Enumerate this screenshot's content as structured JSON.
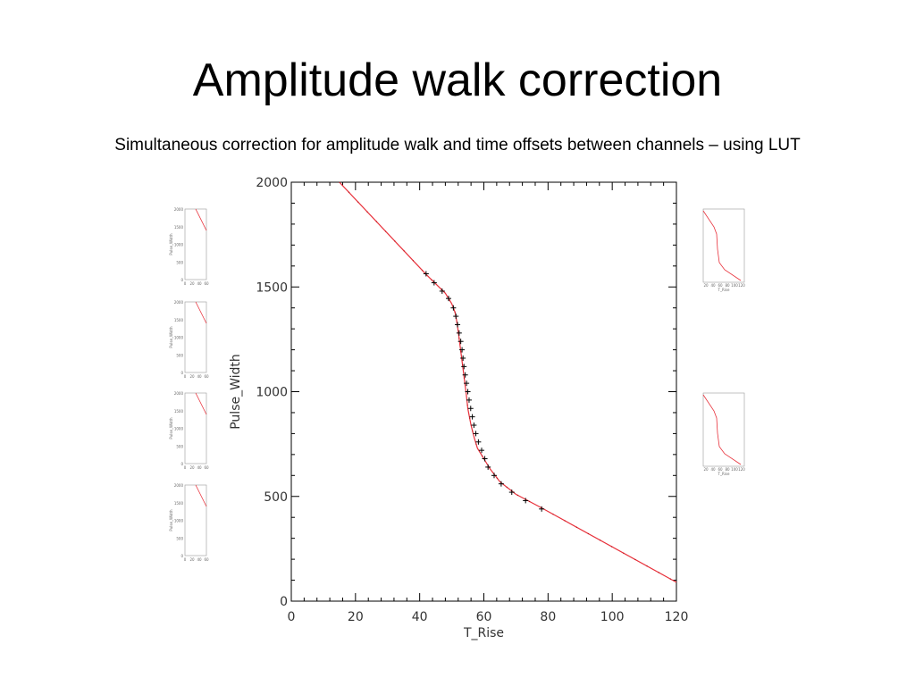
{
  "slide": {
    "title": "Amplitude walk correction",
    "subtitle": "Simultaneous correction for amplitude walk and time offsets between channels – using LUT"
  },
  "colors": {
    "line": "#e8303a",
    "marker": "#000000",
    "axis": "#000000",
    "text": "#333333"
  },
  "chart_data": [
    {
      "type": "line",
      "title": "",
      "xlabel": "T_Rise",
      "ylabel": "Pulse_Width",
      "xlim": [
        0,
        120
      ],
      "ylim": [
        0,
        2000
      ],
      "xticks": [
        0,
        20,
        40,
        60,
        80,
        100,
        120
      ],
      "yticks": [
        0,
        500,
        1000,
        1500,
        2000
      ],
      "grid": false,
      "series": [
        {
          "style": "line",
          "x": [
            15,
            42,
            48,
            50,
            51,
            51.5,
            52,
            52.5,
            53,
            53.5,
            54,
            54.5,
            55,
            56,
            57,
            58,
            60,
            62,
            65,
            70,
            78,
            120
          ],
          "y": [
            2000,
            1560,
            1470,
            1420,
            1380,
            1340,
            1290,
            1230,
            1170,
            1110,
            1050,
            990,
            920,
            840,
            780,
            730,
            680,
            630,
            570,
            510,
            445,
            90
          ]
        },
        {
          "style": "marker",
          "marker": "+",
          "x": [
            42,
            44.5,
            47,
            49,
            50.5,
            51.3,
            51.8,
            52.3,
            52.8,
            53.2,
            53.5,
            53.8,
            54.2,
            54.6,
            55,
            55.4,
            55.9,
            56.4,
            56.9,
            57.5,
            58.3,
            59.3,
            60.3,
            61.3,
            63.2,
            65.4,
            68.7,
            73,
            78
          ],
          "y": [
            1563,
            1520,
            1480,
            1445,
            1400,
            1360,
            1320,
            1280,
            1240,
            1200,
            1160,
            1120,
            1080,
            1040,
            1000,
            960,
            920,
            880,
            840,
            800,
            760,
            720,
            680,
            640,
            600,
            560,
            520,
            480,
            440
          ]
        }
      ]
    }
  ],
  "thumbnails": {
    "left": [
      {
        "ylabel": "Pulse_Width",
        "yticks": [
          "2000",
          "1500",
          "1000",
          "500",
          "0"
        ],
        "xticks": [
          "0",
          "20",
          "40",
          "60"
        ]
      },
      {
        "ylabel": "Pulse_Width",
        "yticks": [
          "2000",
          "1500",
          "1000",
          "500",
          "0"
        ],
        "xticks": [
          "0",
          "20",
          "40",
          "60"
        ]
      },
      {
        "ylabel": "Pulse_Width",
        "yticks": [
          "2000",
          "1500",
          "1000",
          "500",
          "0"
        ],
        "xticks": [
          "0",
          "20",
          "40",
          "60"
        ]
      },
      {
        "ylabel": "Pulse_Width",
        "yticks": [
          "2000",
          "1500",
          "1000",
          "500",
          "0"
        ],
        "xticks": [
          "0",
          "20",
          "40",
          "60"
        ]
      }
    ],
    "right": [
      {
        "xlabel": "T_Rise",
        "xticks": [
          "20",
          "40",
          "60",
          "80",
          "100",
          "120"
        ]
      },
      {
        "xlabel": "T_Rise",
        "xticks": [
          "20",
          "40",
          "60",
          "80",
          "100",
          "120"
        ]
      }
    ]
  }
}
